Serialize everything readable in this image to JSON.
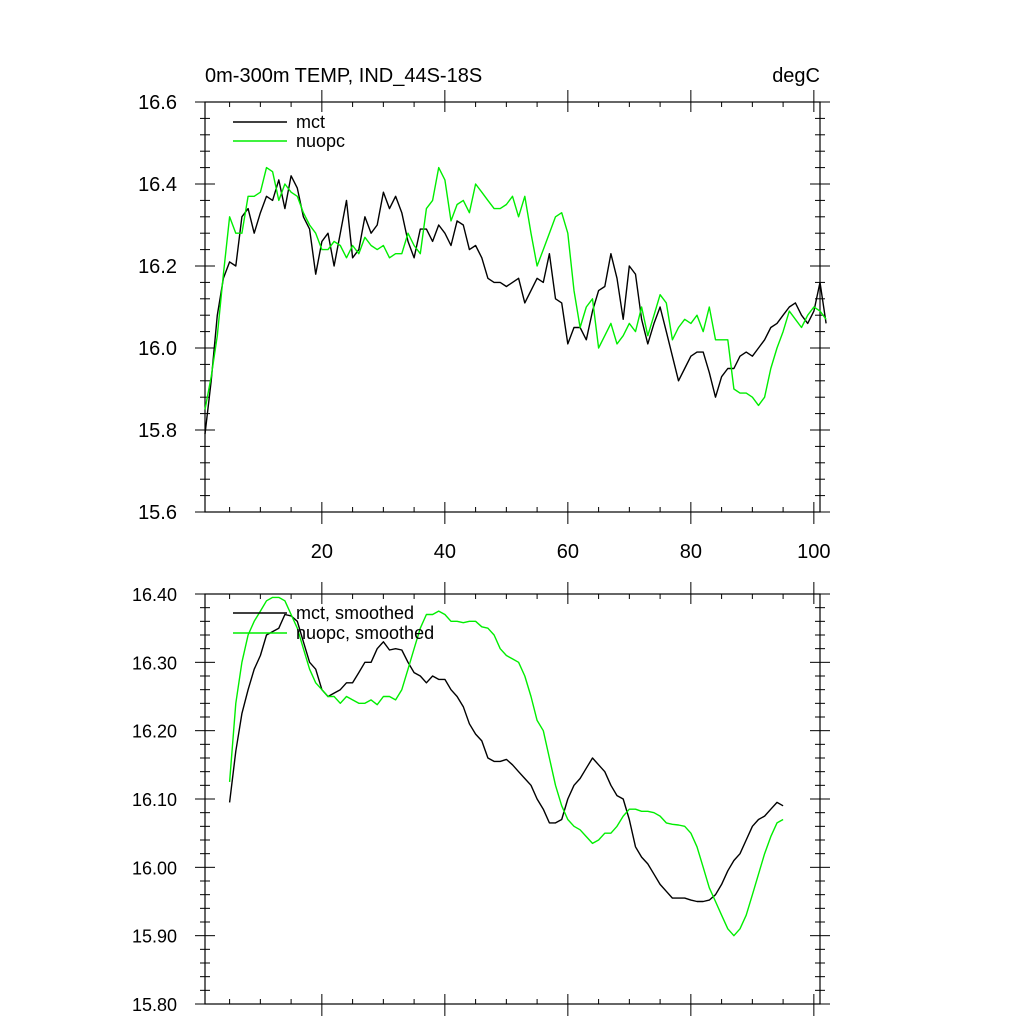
{
  "chart_data": [
    {
      "type": "line",
      "title": "0m-300m TEMP, IND_44S-18S",
      "units": "degC",
      "xlim": [
        1,
        101
      ],
      "ylim": [
        15.6,
        16.6
      ],
      "x_ticks": [
        20,
        40,
        60,
        80,
        100
      ],
      "y_ticks": [
        15.6,
        15.8,
        16.0,
        16.2,
        16.4,
        16.6
      ],
      "y_tick_labels": [
        "15.6",
        "15.8",
        "16.0",
        "16.2",
        "16.4",
        "16.6"
      ],
      "legend": "top-left",
      "series": [
        {
          "name": "mct",
          "color": "#000000",
          "x_start": 1,
          "values": [
            15.79,
            15.92,
            16.08,
            16.17,
            16.21,
            16.2,
            16.32,
            16.34,
            16.28,
            16.33,
            16.37,
            16.36,
            16.41,
            16.34,
            16.42,
            16.39,
            16.32,
            16.29,
            16.18,
            16.26,
            16.28,
            16.2,
            16.28,
            16.36,
            16.22,
            16.24,
            16.32,
            16.28,
            16.3,
            16.38,
            16.34,
            16.37,
            16.33,
            16.26,
            16.22,
            16.29,
            16.29,
            16.26,
            16.3,
            16.28,
            16.25,
            16.31,
            16.3,
            16.24,
            16.25,
            16.22,
            16.17,
            16.16,
            16.16,
            16.15,
            16.16,
            16.17,
            16.11,
            16.14,
            16.17,
            16.16,
            16.23,
            16.12,
            16.11,
            16.01,
            16.05,
            16.05,
            16.02,
            16.09,
            16.14,
            16.15,
            16.23,
            16.17,
            16.07,
            16.2,
            16.18,
            16.07,
            16.01,
            16.06,
            16.1,
            16.04,
            15.98,
            15.92,
            15.95,
            15.98,
            15.99,
            15.99,
            15.94,
            15.88,
            15.93,
            15.95,
            15.95,
            15.98,
            15.99,
            15.98,
            16.0,
            16.02,
            16.05,
            16.06,
            16.08,
            16.1,
            16.11,
            16.08,
            16.06,
            16.09,
            16.16,
            16.06
          ]
        },
        {
          "name": "nuopc",
          "color": "#00ee00",
          "x_start": 1,
          "values": [
            15.85,
            15.93,
            16.03,
            16.18,
            16.32,
            16.28,
            16.28,
            16.37,
            16.37,
            16.38,
            16.44,
            16.43,
            16.36,
            16.4,
            16.38,
            16.37,
            16.33,
            16.3,
            16.28,
            16.24,
            16.24,
            16.26,
            16.25,
            16.22,
            16.25,
            16.23,
            16.27,
            16.25,
            16.24,
            16.25,
            16.22,
            16.23,
            16.23,
            16.28,
            16.25,
            16.23,
            16.34,
            16.36,
            16.44,
            16.41,
            16.31,
            16.35,
            16.36,
            16.33,
            16.4,
            16.38,
            16.36,
            16.34,
            16.34,
            16.35,
            16.37,
            16.32,
            16.37,
            16.28,
            16.2,
            16.24,
            16.28,
            16.32,
            16.33,
            16.28,
            16.14,
            16.05,
            16.1,
            16.12,
            16.0,
            16.03,
            16.06,
            16.01,
            16.03,
            16.06,
            16.04,
            16.1,
            16.03,
            16.08,
            16.13,
            16.11,
            16.02,
            16.05,
            16.07,
            16.06,
            16.08,
            16.04,
            16.1,
            16.02,
            16.02,
            16.02,
            15.9,
            15.89,
            15.89,
            15.88,
            15.86,
            15.88,
            15.95,
            16.0,
            16.04,
            16.09,
            16.07,
            16.05,
            16.08,
            16.1,
            16.09,
            16.07
          ]
        }
      ]
    },
    {
      "type": "line",
      "xlim": [
        1,
        101
      ],
      "ylim": [
        15.8,
        16.4
      ],
      "x_ticks": [
        20,
        40,
        60,
        80,
        100
      ],
      "y_ticks": [
        15.8,
        15.9,
        16.0,
        16.1,
        16.2,
        16.3,
        16.4
      ],
      "y_tick_labels": [
        "15.80",
        "15.90",
        "16.00",
        "16.10",
        "16.20",
        "16.30",
        "16.40"
      ],
      "legend": "top-left",
      "series": [
        {
          "name": "mct, smoothed",
          "color": "#000000",
          "x_start": 5,
          "values": [
            16.095,
            16.17,
            16.225,
            16.26,
            16.29,
            16.31,
            16.34,
            16.345,
            16.35,
            16.37,
            16.368,
            16.36,
            16.33,
            16.3,
            16.29,
            16.26,
            16.25,
            16.255,
            16.26,
            16.27,
            16.27,
            16.285,
            16.3,
            16.3,
            16.32,
            16.33,
            16.318,
            16.32,
            16.318,
            16.3,
            16.285,
            16.28,
            16.27,
            16.28,
            16.275,
            16.275,
            16.26,
            16.25,
            16.235,
            16.21,
            16.195,
            16.185,
            16.16,
            16.155,
            16.155,
            16.158,
            16.15,
            16.14,
            16.13,
            16.12,
            16.1,
            16.085,
            16.065,
            16.065,
            16.07,
            16.1,
            16.12,
            16.13,
            16.145,
            16.16,
            16.15,
            16.14,
            16.12,
            16.105,
            16.1,
            16.07,
            16.03,
            16.015,
            16.005,
            15.99,
            15.975,
            15.965,
            15.955,
            15.955,
            15.955,
            15.952,
            15.95,
            15.95,
            15.952,
            15.96,
            15.975,
            15.995,
            16.01,
            16.02,
            16.04,
            16.06,
            16.07,
            16.075,
            16.085,
            16.095,
            16.09
          ]
        },
        {
          "name": "nuopc, smoothed",
          "color": "#00ee00",
          "x_start": 5,
          "values": [
            16.125,
            16.24,
            16.3,
            16.34,
            16.36,
            16.375,
            16.39,
            16.395,
            16.395,
            16.39,
            16.37,
            16.35,
            16.32,
            16.29,
            16.27,
            16.26,
            16.25,
            16.25,
            16.24,
            16.25,
            16.245,
            16.24,
            16.24,
            16.245,
            16.238,
            16.25,
            16.25,
            16.245,
            16.26,
            16.29,
            16.32,
            16.35,
            16.37,
            16.37,
            16.375,
            16.37,
            16.36,
            16.36,
            16.358,
            16.36,
            16.36,
            16.352,
            16.35,
            16.34,
            16.32,
            16.31,
            16.305,
            16.3,
            16.28,
            16.25,
            16.215,
            16.2,
            16.16,
            16.12,
            16.09,
            16.07,
            16.06,
            16.055,
            16.045,
            16.035,
            16.04,
            16.05,
            16.05,
            16.06,
            16.075,
            16.085,
            16.085,
            16.082,
            16.082,
            16.08,
            16.075,
            16.065,
            16.063,
            16.062,
            16.06,
            16.05,
            16.03,
            16.0,
            15.97,
            15.95,
            15.93,
            15.91,
            15.9,
            15.91,
            15.93,
            15.96,
            15.99,
            16.02,
            16.045,
            16.065,
            16.07
          ]
        }
      ]
    }
  ]
}
